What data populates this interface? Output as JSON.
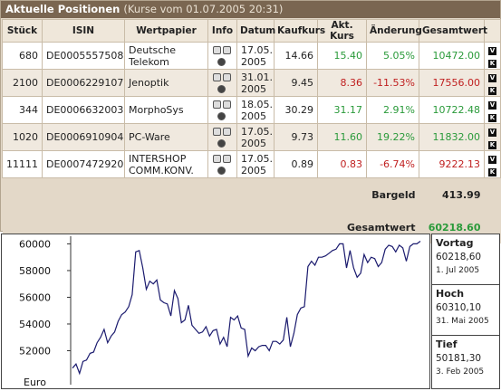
{
  "panel": {
    "title": "Aktuelle Positionen",
    "subtitle": "(Kurse vom 01.07.2005 20:31)"
  },
  "table": {
    "headers": [
      "Stück",
      "ISIN",
      "Wertpapier",
      "Info",
      "Datum",
      "Kaufkurs",
      "Akt. Kurs",
      "Änderung",
      "Gesamtwert"
    ],
    "rows": [
      {
        "stueck": "680",
        "isin": "DE0005557508",
        "name": "Deutsche Telekom",
        "datum": "17.05. 2005",
        "kaufkurs": "14.66",
        "akt": "15.40",
        "aend": "5.05%",
        "gesamt": "10472.00",
        "trend": "up"
      },
      {
        "stueck": "2100",
        "isin": "DE0006229107",
        "name": "Jenoptik",
        "datum": "31.01. 2005",
        "kaufkurs": "9.45",
        "akt": "8.36",
        "aend": "-11.53%",
        "gesamt": "17556.00",
        "trend": "down"
      },
      {
        "stueck": "344",
        "isin": "DE0006632003",
        "name": "MorphoSys",
        "datum": "18.05. 2005",
        "kaufkurs": "30.29",
        "akt": "31.17",
        "aend": "2.91%",
        "gesamt": "10722.48",
        "trend": "up"
      },
      {
        "stueck": "1020",
        "isin": "DE0006910904",
        "name": "PC-Ware",
        "datum": "17.05. 2005",
        "kaufkurs": "9.73",
        "akt": "11.60",
        "aend": "19.22%",
        "gesamt": "11832.00",
        "trend": "up"
      },
      {
        "stueck": "11111",
        "isin": "DE0007472920",
        "name": "INTERSHOP COMM.KONV.",
        "datum": "17.05. 2005",
        "kaufkurs": "0.89",
        "akt": "0.83",
        "aend": "-6.74%",
        "gesamt": "9222.13",
        "trend": "down"
      }
    ],
    "bargeld_label": "Bargeld",
    "bargeld_value": "413.99",
    "gesamtwert_label": "Gesamtwert",
    "gesamtwert_value": "60218.60"
  },
  "side": {
    "vortag_label": "Vortag",
    "vortag_value": "60218,60",
    "vortag_date": "1. Jul 2005",
    "hoch_label": "Hoch",
    "hoch_value": "60310,10",
    "hoch_date": "31. Mai 2005",
    "tief_label": "Tief",
    "tief_value": "50181,30",
    "tief_date": "3. Feb 2005"
  },
  "colors": {
    "positive": "#2a9a3a",
    "negative": "#c02020",
    "header": "#7a6651"
  },
  "chart_data": {
    "type": "line",
    "ylabel": "Euro",
    "ylim": [
      50000,
      60300
    ],
    "yticks": [
      52000,
      54000,
      56000,
      58000,
      60000
    ],
    "ytick_labels": [
      "52000",
      "54000",
      "56000",
      "58000",
      "60000"
    ],
    "series": [
      {
        "values": [
          50700,
          51000,
          50300,
          51200,
          51300,
          51800,
          51900,
          52600,
          53000,
          53600,
          52600,
          53100,
          53400,
          54200,
          54700,
          54900,
          55300,
          56200,
          59400,
          59500,
          58200,
          56600,
          57200,
          57000,
          57300,
          55800,
          55600,
          55500,
          54600,
          56500,
          55900,
          54100,
          54300,
          55400,
          53900,
          53600,
          53300,
          53400,
          53800,
          53100,
          53500,
          53600,
          52500,
          53000,
          52300,
          54500,
          54300,
          54600,
          53700,
          53600,
          51600,
          52200,
          52000,
          52300,
          52400,
          52400,
          52000,
          52700,
          52700,
          52500,
          52800,
          54500,
          52300,
          53300,
          54700,
          55200,
          55300,
          58300,
          58700,
          58400,
          59000,
          59000,
          59100,
          59300,
          59500,
          59600,
          60000,
          60000,
          58200,
          59500,
          58200,
          57500,
          57800,
          59200,
          58600,
          59000,
          58900,
          58300,
          58600,
          59600,
          59900,
          59800,
          59400,
          59900,
          59700,
          58700,
          59800,
          60000,
          60000,
          60200
        ]
      }
    ]
  }
}
